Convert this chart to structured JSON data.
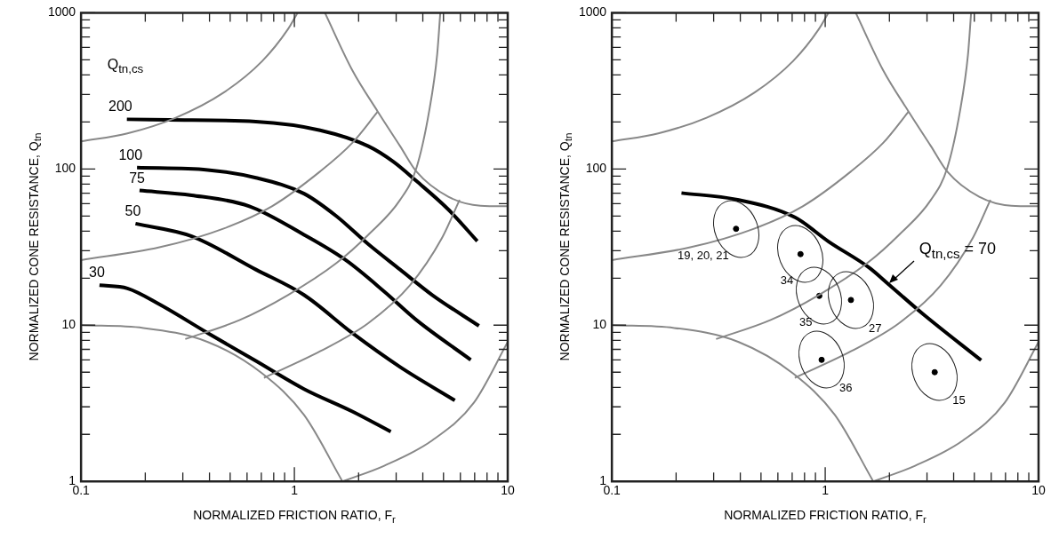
{
  "chart_data": [
    {
      "type": "line",
      "xlabel": "NORMALIZED FRICTION RATIO, F$_{r}$",
      "ylabel": "NORMALIZED CONE RESISTANCE, Q$_{tn}$",
      "legend_title": "Q$_{tn,cs}$",
      "log": "xy",
      "grid": false,
      "legend": false,
      "marker": "none",
      "xlim": [
        0.1,
        10
      ],
      "ylim": [
        1,
        1000
      ],
      "xticks": [
        0.1,
        {
          "value": 0.2,
          "label": null
        },
        {
          "value": 0.3,
          "label": null
        },
        {
          "value": 0.4,
          "label": null
        },
        {
          "value": 0.5,
          "label": null
        },
        {
          "value": 0.6,
          "label": null
        },
        {
          "value": 0.7,
          "label": null
        },
        {
          "value": 0.8,
          "label": null
        },
        {
          "value": 0.9,
          "label": null
        },
        1,
        {
          "value": 2,
          "label": null
        },
        {
          "value": 3,
          "label": null
        },
        {
          "value": 4,
          "label": null
        },
        {
          "value": 5,
          "label": null
        },
        {
          "value": 6,
          "label": null
        },
        {
          "value": 7,
          "label": null
        },
        {
          "value": 8,
          "label": null
        },
        {
          "value": 9,
          "label": null
        },
        10
      ],
      "yticks": [
        1,
        {
          "value": 2,
          "label": null
        },
        {
          "value": 3,
          "label": null
        },
        {
          "value": 4,
          "label": null
        },
        {
          "value": 5,
          "label": null
        },
        {
          "value": 6,
          "label": null
        },
        {
          "value": 7,
          "label": null
        },
        {
          "value": 8,
          "label": null
        },
        {
          "value": 9,
          "label": null
        },
        10,
        {
          "value": 20,
          "label": null
        },
        {
          "value": 30,
          "label": null
        },
        {
          "value": 40,
          "label": null
        },
        {
          "value": 50,
          "label": null
        },
        {
          "value": 60,
          "label": null
        },
        {
          "value": 70,
          "label": null
        },
        {
          "value": 80,
          "label": null
        },
        {
          "value": 90,
          "label": null
        },
        100,
        {
          "value": 200,
          "label": null
        },
        {
          "value": 300,
          "label": null
        },
        {
          "value": 400,
          "label": null
        },
        {
          "value": 500,
          "label": null
        },
        {
          "value": 600,
          "label": null
        },
        {
          "value": 700,
          "label": null
        },
        {
          "value": 800,
          "label": null
        },
        {
          "value": 900,
          "label": null
        },
        1000
      ],
      "series": [
        {
          "color": "#888888",
          "x": [
            0.1,
            0.165,
            0.278,
            0.467,
            0.708,
            0.933,
            1.035
          ],
          "values": [
            150,
            169,
            213,
            309,
            492,
            785,
            1000
          ]
        },
        {
          "color": "#888888",
          "x": [
            0.1,
            0.233,
            0.467,
            0.785,
            1.32,
            1.87,
            2.46
          ],
          "values": [
            26.1,
            31.5,
            41.6,
            57.7,
            96.4,
            147,
            233
          ]
        },
        {
          "color": "#888888",
          "x": [
            0.308,
            0.555,
            0.933,
            1.57,
            2.22,
            3.13,
            3.73,
            4.28,
            4.67,
            4.83
          ],
          "values": [
            8.15,
            10.8,
            15.6,
            24.9,
            37.9,
            63.4,
            101,
            233,
            541,
            1000
          ]
        },
        {
          "color": "#888888",
          "x": [
            0.72,
            1.32,
            2.22,
            3.48,
            4.92,
            5.95
          ],
          "values": [
            4.6,
            6.8,
            10.3,
            18,
            36.2,
            63.4
          ]
        },
        {
          "color": "#888888",
          "x": [
            0.1,
            0.196,
            0.393,
            0.708,
            1.11,
            1.68
          ],
          "values": [
            10,
            9.6,
            7.8,
            4.9,
            2.66,
            1
          ]
        },
        {
          "color": "#888888",
          "x": [
            1.39,
            1.87,
            2.46,
            3.13,
            3.73,
            5.27,
            7.45,
            10
          ],
          "values": [
            1000,
            428,
            233,
            140,
            96.4,
            66.4,
            58.2,
            57.7
          ]
        },
        {
          "color": "#888888",
          "x": [
            1.68,
            2.64,
            4.43,
            6.95,
            10
          ],
          "values": [
            1,
            1.26,
            1.83,
            3.2,
            7.8
          ]
        },
        {
          "name": "200",
          "color": "#000000",
          "x": [
            0.164,
            0.259,
            0.66,
            1.32,
            2.22,
            2.92,
            3.73,
            5.27,
            7.2
          ],
          "values": [
            208,
            206,
            201,
            177,
            140,
            111,
            83.8,
            55,
            34.5
          ]
        },
        {
          "name": "100",
          "color": "#000000",
          "x": [
            0.183,
            0.393,
            0.66,
            1.11,
            1.57,
            2.22,
            3.13,
            4.43,
            7.33
          ],
          "values": [
            102,
            98.6,
            87.8,
            69.5,
            50,
            33,
            22.7,
            15.6,
            9.9
          ]
        },
        {
          "name": "75",
          "color": "#000000",
          "x": [
            0.188,
            0.33,
            0.615,
            1.11,
            1.74,
            2.64,
            3.73,
            6.71
          ],
          "values": [
            72.8,
            67.9,
            57.7,
            37.9,
            26.1,
            16.4,
            10.8,
            6
          ]
        },
        {
          "name": "50",
          "color": "#000000",
          "x": [
            0.18,
            0.33,
            0.66,
            1.11,
            1.87,
            3.13,
            5.65
          ],
          "values": [
            44.7,
            37.1,
            22.7,
            15.6,
            8.9,
            5.4,
            3.3
          ]
        },
        {
          "name": "30",
          "color": "#000000",
          "x": [
            0.122,
            0.165,
            0.233,
            0.393,
            0.66,
            1.11,
            1.87,
            2.83
          ],
          "values": [
            18,
            17.2,
            13.6,
            8.9,
            5.9,
            3.9,
            2.8,
            2.08
          ]
        }
      ]
    },
    {
      "type": "line",
      "xlabel": "NORMALIZED FRICTION RATIO, F$_{r}$",
      "ylabel": "NORMALIZED CONE RESISTANCE, Q$_{tn}$",
      "log": "xy",
      "grid": false,
      "legend": false,
      "marker": "none",
      "xlim": [
        0.1,
        10
      ],
      "ylim": [
        1,
        1000
      ],
      "xticks": [
        0.1,
        {
          "value": 0.2,
          "label": null
        },
        {
          "value": 0.3,
          "label": null
        },
        {
          "value": 0.4,
          "label": null
        },
        {
          "value": 0.5,
          "label": null
        },
        {
          "value": 0.6,
          "label": null
        },
        {
          "value": 0.7,
          "label": null
        },
        {
          "value": 0.8,
          "label": null
        },
        {
          "value": 0.9,
          "label": null
        },
        1,
        {
          "value": 2,
          "label": null
        },
        {
          "value": 3,
          "label": null
        },
        {
          "value": 4,
          "label": null
        },
        {
          "value": 5,
          "label": null
        },
        {
          "value": 6,
          "label": null
        },
        {
          "value": 7,
          "label": null
        },
        {
          "value": 8,
          "label": null
        },
        {
          "value": 9,
          "label": null
        },
        10
      ],
      "yticks": [
        1,
        {
          "value": 2,
          "label": null
        },
        {
          "value": 3,
          "label": null
        },
        {
          "value": 4,
          "label": null
        },
        {
          "value": 5,
          "label": null
        },
        {
          "value": 6,
          "label": null
        },
        {
          "value": 7,
          "label": null
        },
        {
          "value": 8,
          "label": null
        },
        {
          "value": 9,
          "label": null
        },
        10,
        {
          "value": 20,
          "label": null
        },
        {
          "value": 30,
          "label": null
        },
        {
          "value": 40,
          "label": null
        },
        {
          "value": 50,
          "label": null
        },
        {
          "value": 60,
          "label": null
        },
        {
          "value": 70,
          "label": null
        },
        {
          "value": 80,
          "label": null
        },
        {
          "value": 90,
          "label": null
        },
        100,
        {
          "value": 200,
          "label": null
        },
        {
          "value": 300,
          "label": null
        },
        {
          "value": 400,
          "label": null
        },
        {
          "value": 500,
          "label": null
        },
        {
          "value": 600,
          "label": null
        },
        {
          "value": 700,
          "label": null
        },
        {
          "value": 800,
          "label": null
        },
        {
          "value": 900,
          "label": null
        },
        1000
      ],
      "annotations": [
        {
          "text": "19, 20, 21",
          "x": 0.382,
          "y": 41.4
        },
        {
          "text": "34",
          "x": 0.766,
          "y": 28.5
        },
        {
          "text": "35",
          "x": 0.938,
          "y": 15.4
        },
        {
          "text": "27",
          "x": 1.32,
          "y": 14.5
        },
        {
          "text": "36",
          "x": 0.962,
          "y": 6
        },
        {
          "text": "15",
          "x": 3.26,
          "y": 5
        }
      ],
      "series": [
        {
          "color": "#888888",
          "x": [
            0.1,
            0.165,
            0.278,
            0.467,
            0.708,
            0.933,
            1.035
          ],
          "values": [
            150,
            169,
            213,
            309,
            492,
            785,
            1000
          ]
        },
        {
          "color": "#888888",
          "x": [
            0.1,
            0.233,
            0.467,
            0.785,
            1.32,
            1.87,
            2.46
          ],
          "values": [
            26.1,
            31.5,
            41.6,
            57.7,
            96.4,
            147,
            233
          ]
        },
        {
          "color": "#888888",
          "x": [
            0.308,
            0.555,
            0.933,
            1.57,
            2.22,
            3.13,
            3.73,
            4.28,
            4.67,
            4.83
          ],
          "values": [
            8.15,
            10.8,
            15.6,
            24.9,
            37.9,
            63.4,
            101,
            233,
            541,
            1000
          ]
        },
        {
          "color": "#888888",
          "x": [
            0.72,
            1.32,
            2.22,
            3.48,
            4.92,
            5.95
          ],
          "values": [
            4.6,
            6.8,
            10.3,
            18,
            36.2,
            63.4
          ]
        },
        {
          "color": "#888888",
          "x": [
            0.1,
            0.196,
            0.393,
            0.708,
            1.11,
            1.68
          ],
          "values": [
            10,
            9.6,
            7.8,
            4.9,
            2.66,
            1
          ]
        },
        {
          "color": "#888888",
          "x": [
            1.39,
            1.87,
            2.46,
            3.13,
            3.73,
            5.27,
            7.45,
            10
          ],
          "values": [
            1000,
            428,
            233,
            140,
            96.4,
            66.4,
            58.2,
            57.7
          ]
        },
        {
          "color": "#888888",
          "x": [
            1.68,
            2.64,
            4.43,
            6.95,
            10
          ],
          "values": [
            1,
            1.26,
            1.83,
            3.2,
            7.8
          ]
        },
        {
          "name": "Q$_{tn,cs}$ = 70",
          "color": "#000000",
          "x": [
            0.212,
            0.382,
            0.721,
            1.04,
            1.61,
            1.97,
            2.85,
            5.38
          ],
          "values": [
            70.2,
            63.8,
            49,
            34.2,
            23.3,
            18.4,
            11.9,
            5.96
          ]
        },
        {
          "type": "scatter",
          "marker": "circle",
          "color": "#000000",
          "x": [
            0.382,
            0.766,
            0.938,
            1.32,
            0.962,
            3.26
          ],
          "values": [
            41.4,
            28.5,
            15.4,
            14.5,
            6,
            5
          ]
        }
      ]
    }
  ]
}
